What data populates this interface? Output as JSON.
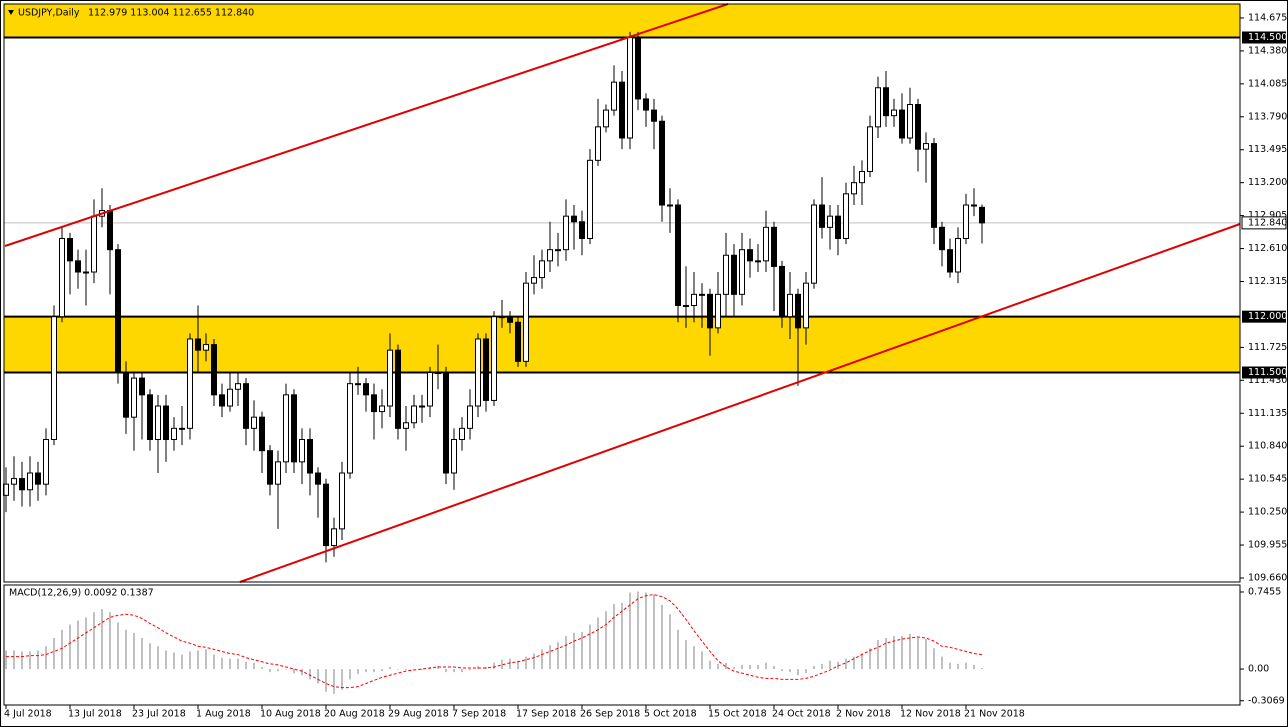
{
  "chart_data": [
    {
      "type": "candlestick",
      "title": "USDJPY,Daily",
      "quote": "112.979 113.004 112.655 112.840",
      "categories": [
        "4 Jul 2018",
        null,
        null,
        null,
        null,
        null,
        null,
        null,
        "13 Jul 2018",
        null,
        null,
        null,
        null,
        null,
        null,
        null,
        "23 Jul 2018",
        null,
        null,
        null,
        null,
        null,
        null,
        null,
        "1 Aug 2018",
        null,
        null,
        null,
        null,
        null,
        null,
        null,
        "10 Aug 2018",
        null,
        null,
        null,
        null,
        null,
        null,
        null,
        "20 Aug 2018",
        null,
        null,
        null,
        null,
        null,
        null,
        null,
        "29 Aug 2018",
        null,
        null,
        null,
        null,
        null,
        null,
        null,
        "7 Sep 2018",
        null,
        null,
        null,
        null,
        null,
        null,
        null,
        "17 Sep 2018",
        null,
        null,
        null,
        null,
        null,
        null,
        null,
        "26 Sep 2018",
        null,
        null,
        null,
        null,
        null,
        null,
        null,
        "5 Oct 2018",
        null,
        null,
        null,
        null,
        null,
        null,
        null,
        "15 Oct 2018",
        null,
        null,
        null,
        null,
        null,
        null,
        null,
        "24 Oct 2018",
        null,
        null,
        null,
        null,
        null,
        null,
        null,
        "2 Nov 2018",
        null,
        null,
        null,
        null,
        null,
        null,
        null,
        "12 Nov 2018",
        null,
        null,
        null,
        null,
        null,
        null,
        null,
        "21 Nov 2018",
        null,
        null
      ],
      "open": [
        110.4,
        110.5,
        110.55,
        110.45,
        110.6,
        110.5,
        110.9,
        112.0,
        112.7,
        112.5,
        112.4,
        112.4,
        112.9,
        112.95,
        112.6,
        111.5,
        111.1,
        111.45,
        111.3,
        110.9,
        111.2,
        110.9,
        111.0,
        111.0,
        111.8,
        111.7,
        111.75,
        111.3,
        111.2,
        111.35,
        111.4,
        111.0,
        111.1,
        110.8,
        110.5,
        110.7,
        111.3,
        110.7,
        110.9,
        110.6,
        110.5,
        109.95,
        110.1,
        110.6,
        111.4,
        111.4,
        111.3,
        111.15,
        111.2,
        111.7,
        111.0,
        111.05,
        111.2,
        111.2,
        111.5,
        111.5,
        110.6,
        110.9,
        111.0,
        111.2,
        111.8,
        111.25,
        112.0,
        112.0,
        111.95,
        111.6,
        112.3,
        112.35,
        112.5,
        112.6,
        112.6,
        112.9,
        112.85,
        112.7,
        113.4,
        113.7,
        113.85,
        114.1,
        113.6,
        114.5,
        113.95,
        113.85,
        113.75,
        113.0,
        113.0,
        112.1,
        112.1,
        112.2,
        112.2,
        111.9,
        112.2,
        112.55,
        112.2,
        112.6,
        112.5,
        112.5,
        112.8,
        112.45,
        112.0,
        112.2,
        111.9,
        112.3,
        113.0,
        112.8,
        112.9,
        112.7,
        113.1,
        113.2,
        113.3,
        113.7,
        114.05,
        113.8,
        113.85,
        113.6,
        113.9,
        113.5,
        113.55,
        112.8,
        112.6,
        112.4,
        112.7,
        113.0,
        112.979
      ],
      "high": [
        110.65,
        110.75,
        110.7,
        110.75,
        110.7,
        111.0,
        112.1,
        112.8,
        112.75,
        112.6,
        112.6,
        113.05,
        113.15,
        113.0,
        112.65,
        111.6,
        111.5,
        111.5,
        111.35,
        111.3,
        111.3,
        111.1,
        111.2,
        111.85,
        112.1,
        111.85,
        111.8,
        111.4,
        111.5,
        111.5,
        111.45,
        111.25,
        111.15,
        110.85,
        110.8,
        111.4,
        111.35,
        111.0,
        111.0,
        110.65,
        110.55,
        110.2,
        110.7,
        111.5,
        111.55,
        111.45,
        111.4,
        111.35,
        111.85,
        111.75,
        111.2,
        111.3,
        111.3,
        111.55,
        111.75,
        111.55,
        111.0,
        111.1,
        111.35,
        111.85,
        111.85,
        112.05,
        112.15,
        112.05,
        112.0,
        112.4,
        112.55,
        112.6,
        112.85,
        112.75,
        113.05,
        113.0,
        112.95,
        113.5,
        113.95,
        113.9,
        114.25,
        114.2,
        114.55,
        114.55,
        114.0,
        113.95,
        113.8,
        113.15,
        113.05,
        112.45,
        112.4,
        112.3,
        112.25,
        112.4,
        112.75,
        112.65,
        112.75,
        112.7,
        112.65,
        112.95,
        112.85,
        112.5,
        112.4,
        112.25,
        112.4,
        113.05,
        113.25,
        113.0,
        113.0,
        113.2,
        113.35,
        113.4,
        113.8,
        114.15,
        114.2,
        113.95,
        114.0,
        114.05,
        113.95,
        113.65,
        113.6,
        112.85,
        112.7,
        112.8,
        113.1,
        113.15,
        113.004
      ],
      "low": [
        110.25,
        110.35,
        110.3,
        110.3,
        110.35,
        110.4,
        110.85,
        111.95,
        112.2,
        112.25,
        112.1,
        112.3,
        112.8,
        112.2,
        111.4,
        110.95,
        110.8,
        110.9,
        110.8,
        110.6,
        110.7,
        110.8,
        110.85,
        110.9,
        111.5,
        111.6,
        111.2,
        111.1,
        111.15,
        111.2,
        110.85,
        110.8,
        110.6,
        110.4,
        110.1,
        110.6,
        110.6,
        110.5,
        110.4,
        110.2,
        109.8,
        109.85,
        110.0,
        110.55,
        111.3,
        111.15,
        110.9,
        111.0,
        111.1,
        110.9,
        110.8,
        111.0,
        111.05,
        111.1,
        111.35,
        110.5,
        110.45,
        110.8,
        110.9,
        111.1,
        111.15,
        111.2,
        111.9,
        111.85,
        111.55,
        111.55,
        112.2,
        112.25,
        112.4,
        112.45,
        112.5,
        112.6,
        112.55,
        112.65,
        113.35,
        113.65,
        113.8,
        113.5,
        113.5,
        113.85,
        113.7,
        113.5,
        112.85,
        112.75,
        111.95,
        111.9,
        111.95,
        111.9,
        111.65,
        111.85,
        112.0,
        112.0,
        112.1,
        112.35,
        112.4,
        112.4,
        112.05,
        111.9,
        111.8,
        111.38,
        111.75,
        112.25,
        112.7,
        112.6,
        112.55,
        112.65,
        113.0,
        113.0,
        113.25,
        113.6,
        113.7,
        113.7,
        113.55,
        113.55,
        113.3,
        113.2,
        112.65,
        112.45,
        112.35,
        112.3,
        112.65,
        112.9,
        112.655
      ],
      "close": [
        110.5,
        110.55,
        110.45,
        110.6,
        110.5,
        110.9,
        112.0,
        112.7,
        112.5,
        112.4,
        112.4,
        112.9,
        112.95,
        112.6,
        111.5,
        111.1,
        111.45,
        111.3,
        110.9,
        111.2,
        110.9,
        111.0,
        111.0,
        111.8,
        111.7,
        111.75,
        111.3,
        111.2,
        111.35,
        111.4,
        111.0,
        111.1,
        110.8,
        110.5,
        110.7,
        111.3,
        110.7,
        110.9,
        110.6,
        110.5,
        109.95,
        110.1,
        110.6,
        111.4,
        111.4,
        111.3,
        111.15,
        111.2,
        111.7,
        111.0,
        111.05,
        111.2,
        111.2,
        111.5,
        111.5,
        110.6,
        110.9,
        111.0,
        111.2,
        111.8,
        111.25,
        112.0,
        112.0,
        111.95,
        111.6,
        112.3,
        112.35,
        112.5,
        112.6,
        112.6,
        112.9,
        112.85,
        112.7,
        113.4,
        113.7,
        113.85,
        114.1,
        113.6,
        114.5,
        113.95,
        113.85,
        113.75,
        113.0,
        113.0,
        112.1,
        112.1,
        112.2,
        112.2,
        111.9,
        112.2,
        112.55,
        112.2,
        112.6,
        112.5,
        112.5,
        112.8,
        112.45,
        112.0,
        112.2,
        111.9,
        112.3,
        113.0,
        112.8,
        112.9,
        112.7,
        113.1,
        113.2,
        113.3,
        113.7,
        114.05,
        113.8,
        113.85,
        113.6,
        113.9,
        113.5,
        113.55,
        112.8,
        112.6,
        112.4,
        112.7,
        113.0,
        113.0,
        112.84
      ],
      "ylim": [
        109.624,
        114.8
      ],
      "yticks": [
        114.675,
        {
          "value": 114.38,
          "label": "114.380"
        },
        114.085,
        {
          "value": 113.79,
          "label": "113.790"
        },
        113.495,
        {
          "value": 113.2,
          "label": "113.200"
        },
        112.905,
        {
          "value": 112.61,
          "label": "112.610"
        },
        112.315,
        111.725,
        {
          "value": 111.43,
          "label": "111.430"
        },
        111.135,
        {
          "value": 110.84,
          "label": "110.840"
        },
        110.545,
        {
          "value": 110.25,
          "label": "110.250"
        },
        109.955,
        {
          "value": 109.66,
          "label": "109.660"
        }
      ],
      "levels": [
        {
          "value": 114.5,
          "label": "114.500"
        },
        {
          "value": 112.0,
          "label": "112.000"
        },
        {
          "value": 111.5,
          "label": "111.500"
        }
      ],
      "zones": [
        [
          114.5,
          114.8
        ],
        [
          111.5,
          112.0
        ]
      ],
      "zone_color": "#ffd700",
      "last_price": {
        "value": 112.84,
        "label": "112.840"
      },
      "bull_color": "#ffffff",
      "bear_color": "#000000"
    },
    {
      "type": "macd",
      "title": "MACD(12,26,9) 0.0092 0.1387",
      "series": [
        {
          "name": "MACD",
          "color": "#c0c0c0",
          "values": [
            0.18,
            0.18,
            0.17,
            0.17,
            0.18,
            0.22,
            0.3,
            0.38,
            0.43,
            0.47,
            0.5,
            0.55,
            0.58,
            0.55,
            0.45,
            0.38,
            0.35,
            0.3,
            0.25,
            0.22,
            0.18,
            0.16,
            0.14,
            0.17,
            0.18,
            0.19,
            0.14,
            0.11,
            0.1,
            0.1,
            0.07,
            0.06,
            0.02,
            -0.03,
            -0.02,
            0.0,
            -0.04,
            -0.06,
            -0.1,
            -0.14,
            -0.22,
            -0.24,
            -0.2,
            -0.1,
            -0.05,
            -0.03,
            -0.03,
            -0.02,
            0.02,
            0.0,
            -0.01,
            -0.01,
            -0.01,
            0.02,
            0.03,
            -0.03,
            -0.03,
            -0.03,
            -0.01,
            0.03,
            0.02,
            0.06,
            0.09,
            0.1,
            0.08,
            0.12,
            0.15,
            0.19,
            0.23,
            0.26,
            0.32,
            0.35,
            0.36,
            0.43,
            0.5,
            0.56,
            0.63,
            0.64,
            0.74,
            0.75,
            0.74,
            0.72,
            0.62,
            0.53,
            0.38,
            0.28,
            0.22,
            0.17,
            0.08,
            0.05,
            0.06,
            0.02,
            0.04,
            0.04,
            0.04,
            0.06,
            0.03,
            -0.02,
            -0.03,
            -0.06,
            -0.04,
            0.03,
            0.05,
            0.08,
            0.07,
            0.1,
            0.12,
            0.15,
            0.2,
            0.28,
            0.3,
            0.32,
            0.32,
            0.34,
            0.3,
            0.29,
            0.2,
            0.12,
            0.06,
            0.05,
            0.06,
            0.04,
            0.0092
          ]
        },
        {
          "name": "Signal",
          "color": "#ff0000",
          "values": [
            0.12,
            0.12,
            0.12,
            0.13,
            0.13,
            0.14,
            0.17,
            0.2,
            0.25,
            0.3,
            0.35,
            0.4,
            0.45,
            0.5,
            0.52,
            0.53,
            0.52,
            0.49,
            0.44,
            0.4,
            0.35,
            0.31,
            0.27,
            0.25,
            0.22,
            0.21,
            0.19,
            0.17,
            0.15,
            0.14,
            0.11,
            0.09,
            0.07,
            0.05,
            0.04,
            0.02,
            0.0,
            -0.02,
            -0.06,
            -0.1,
            -0.14,
            -0.17,
            -0.18,
            -0.18,
            -0.17,
            -0.14,
            -0.11,
            -0.08,
            -0.06,
            -0.04,
            -0.02,
            -0.01,
            0.0,
            0.01,
            0.02,
            0.02,
            0.02,
            0.01,
            0.01,
            0.01,
            0.01,
            0.02,
            0.04,
            0.06,
            0.07,
            0.09,
            0.11,
            0.14,
            0.17,
            0.2,
            0.23,
            0.27,
            0.3,
            0.34,
            0.38,
            0.43,
            0.5,
            0.56,
            0.62,
            0.68,
            0.71,
            0.72,
            0.7,
            0.66,
            0.58,
            0.48,
            0.37,
            0.27,
            0.17,
            0.08,
            0.02,
            -0.02,
            -0.04,
            -0.06,
            -0.08,
            -0.09,
            -0.09,
            -0.1,
            -0.1,
            -0.1,
            -0.09,
            -0.07,
            -0.04,
            -0.01,
            0.03,
            0.06,
            0.1,
            0.14,
            0.18,
            0.21,
            0.25,
            0.27,
            0.29,
            0.3,
            0.31,
            0.3,
            0.27,
            0.22,
            0.21,
            0.19,
            0.17,
            0.15,
            0.1387
          ]
        }
      ],
      "ylim": [
        -0.348,
        0.813
      ],
      "yticks": [
        0.7455,
        {
          "value": 0,
          "label": "0.00"
        },
        -0.3069
      ]
    }
  ]
}
